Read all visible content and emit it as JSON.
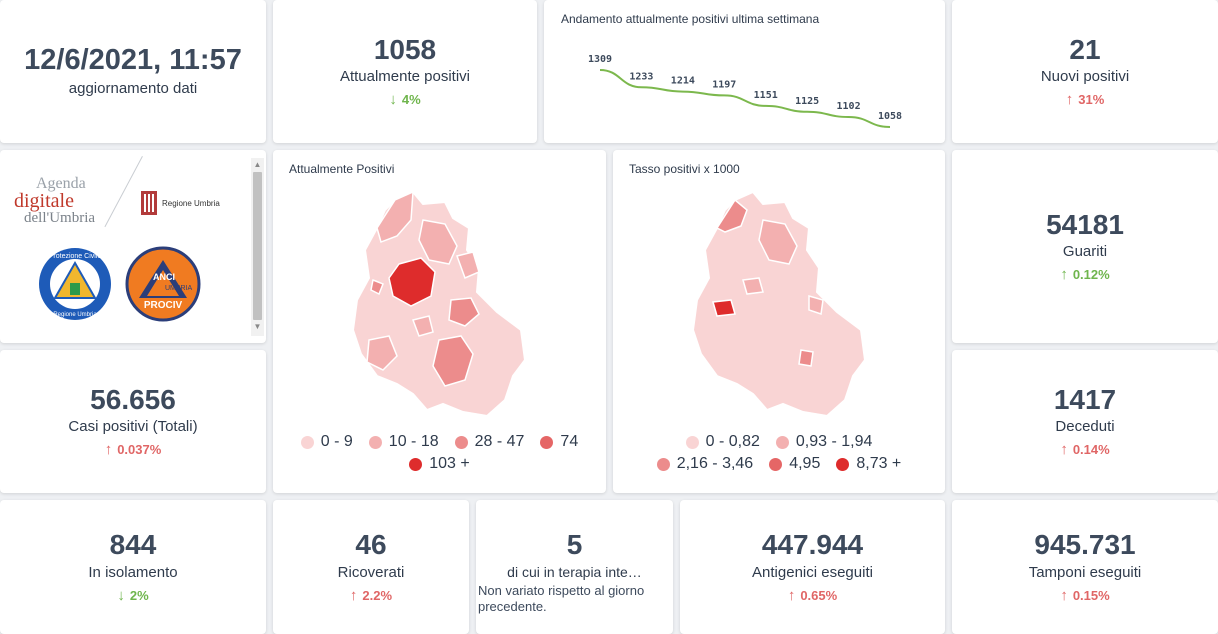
{
  "update": {
    "datetime": "12/6/2021, 11:57",
    "label": "aggiornamento dati"
  },
  "positives": {
    "value": "1058",
    "label": "Attualmente positivi",
    "change": "4%",
    "direction": "down"
  },
  "trend": {
    "title": "Andamento attualmente positivi ultima settimana",
    "chart_data": {
      "type": "line",
      "title": "Andamento attualmente positivi ultima settimana",
      "values": [
        1309,
        1233,
        1214,
        1197,
        1151,
        1125,
        1102,
        1058
      ],
      "labels": [
        "1309",
        "1233",
        "1214",
        "1197",
        "1151",
        "1125",
        "1102",
        "1058"
      ],
      "line_color": "#7cb84d"
    }
  },
  "new_positives": {
    "value": "21",
    "label": "Nuovi positivi",
    "change": "31%",
    "direction": "up"
  },
  "logos": {
    "agenda_line1": "Agenda",
    "agenda_line2": "digitale",
    "agenda_line3": "dell'Umbria",
    "regione": "Regione Umbria",
    "protezione_top": "Protezione Civile",
    "protezione_bottom": "Regione Umbria",
    "anci_top": "ANCI",
    "anci_mid": "UMBRIA",
    "anci_bottom": "PROCIV"
  },
  "map_positives": {
    "title": "Attualmente Positivi",
    "legend": [
      {
        "label": "0 - 9",
        "color": "#f9d4d4"
      },
      {
        "label": "10 - 18",
        "color": "#f3b0b0"
      },
      {
        "label": "28 - 47",
        "color": "#ec8c8c"
      },
      {
        "label": "74",
        "color": "#e56666"
      },
      {
        "label": "103 +",
        "color": "#de2c2c"
      }
    ]
  },
  "map_rate": {
    "title": "Tasso positivi x 1000",
    "legend": [
      {
        "label": "0 - 0,82",
        "color": "#f9d4d4"
      },
      {
        "label": "0,93 - 1,94",
        "color": "#f3b0b0"
      },
      {
        "label": "2,16 - 3,46",
        "color": "#ec8c8c"
      },
      {
        "label": "4,95",
        "color": "#e56666"
      },
      {
        "label": "8,73 +",
        "color": "#de2c2c"
      }
    ]
  },
  "recovered": {
    "value": "54181",
    "label": "Guariti",
    "change": "0.12%",
    "direction": "up-green"
  },
  "total_cases": {
    "value": "56.656",
    "label": "Casi positivi (Totali)",
    "change": "0.037%",
    "direction": "up"
  },
  "deaths": {
    "value": "1417",
    "label": "Deceduti",
    "change": "0.14%",
    "direction": "up"
  },
  "isolation": {
    "value": "844",
    "label": "In isolamento",
    "change": "2%",
    "direction": "down"
  },
  "hospitalized": {
    "value": "46",
    "label": "Ricoverati",
    "change": "2.2%",
    "direction": "up"
  },
  "icu": {
    "value": "5",
    "label": "di cui in terapia inte…",
    "note": "Non variato rispetto al giorno precedente."
  },
  "antigen": {
    "value": "447.944",
    "label": "Antigenici eseguiti",
    "change": "0.65%",
    "direction": "up"
  },
  "swabs": {
    "value": "945.731",
    "label": "Tamponi eseguiti",
    "change": "0.15%",
    "direction": "up"
  }
}
